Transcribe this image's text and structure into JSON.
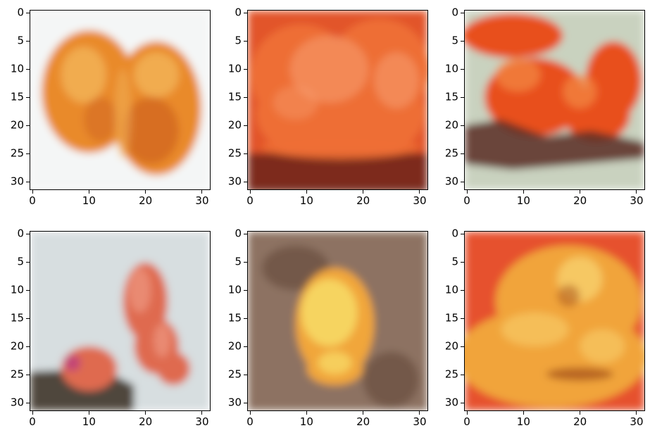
{
  "figure": {
    "x_ticks": [
      "0",
      "10",
      "20",
      "30"
    ],
    "y_ticks": [
      "0",
      "5",
      "10",
      "15",
      "20",
      "25",
      "30"
    ],
    "panels": [
      {
        "subject": "two orange citrus halves on white background",
        "colors": {
          "bg": "#f4f6f6",
          "main": "#e98a2c",
          "hi": "#f2b45a",
          "dark": "#c9571f"
        }
      },
      {
        "subject": "close-up of orange citrus segments with dark base",
        "colors": {
          "bg": "#e2552a",
          "main": "#ee6e34",
          "hi": "#f7a173",
          "dark": "#6b2418"
        }
      },
      {
        "subject": "orange flower-like shapes over pale green background with dark shadow",
        "colors": {
          "bg": "#c9d2bf",
          "main": "#e84f1f",
          "hi": "#f38a44",
          "dark": "#5a2c22"
        }
      },
      {
        "subject": "two red-orange fruits on light grey backdrop with dark lower-left shape",
        "colors": {
          "bg": "#d7dee0",
          "main": "#df6a4f",
          "hi": "#f0a08a",
          "dark": "#4f463d"
        }
      },
      {
        "subject": "yellow-orange round fruit on brownish textured background",
        "colors": {
          "bg": "#8d7262",
          "main": "#f1a63a",
          "hi": "#f8e06a",
          "dark": "#4e3228"
        }
      },
      {
        "subject": "yellow-orange fruit pieces on red-orange background",
        "colors": {
          "bg": "#e6512e",
          "main": "#f1a43b",
          "hi": "#f8d16e",
          "dark": "#b25f22"
        }
      }
    ]
  }
}
